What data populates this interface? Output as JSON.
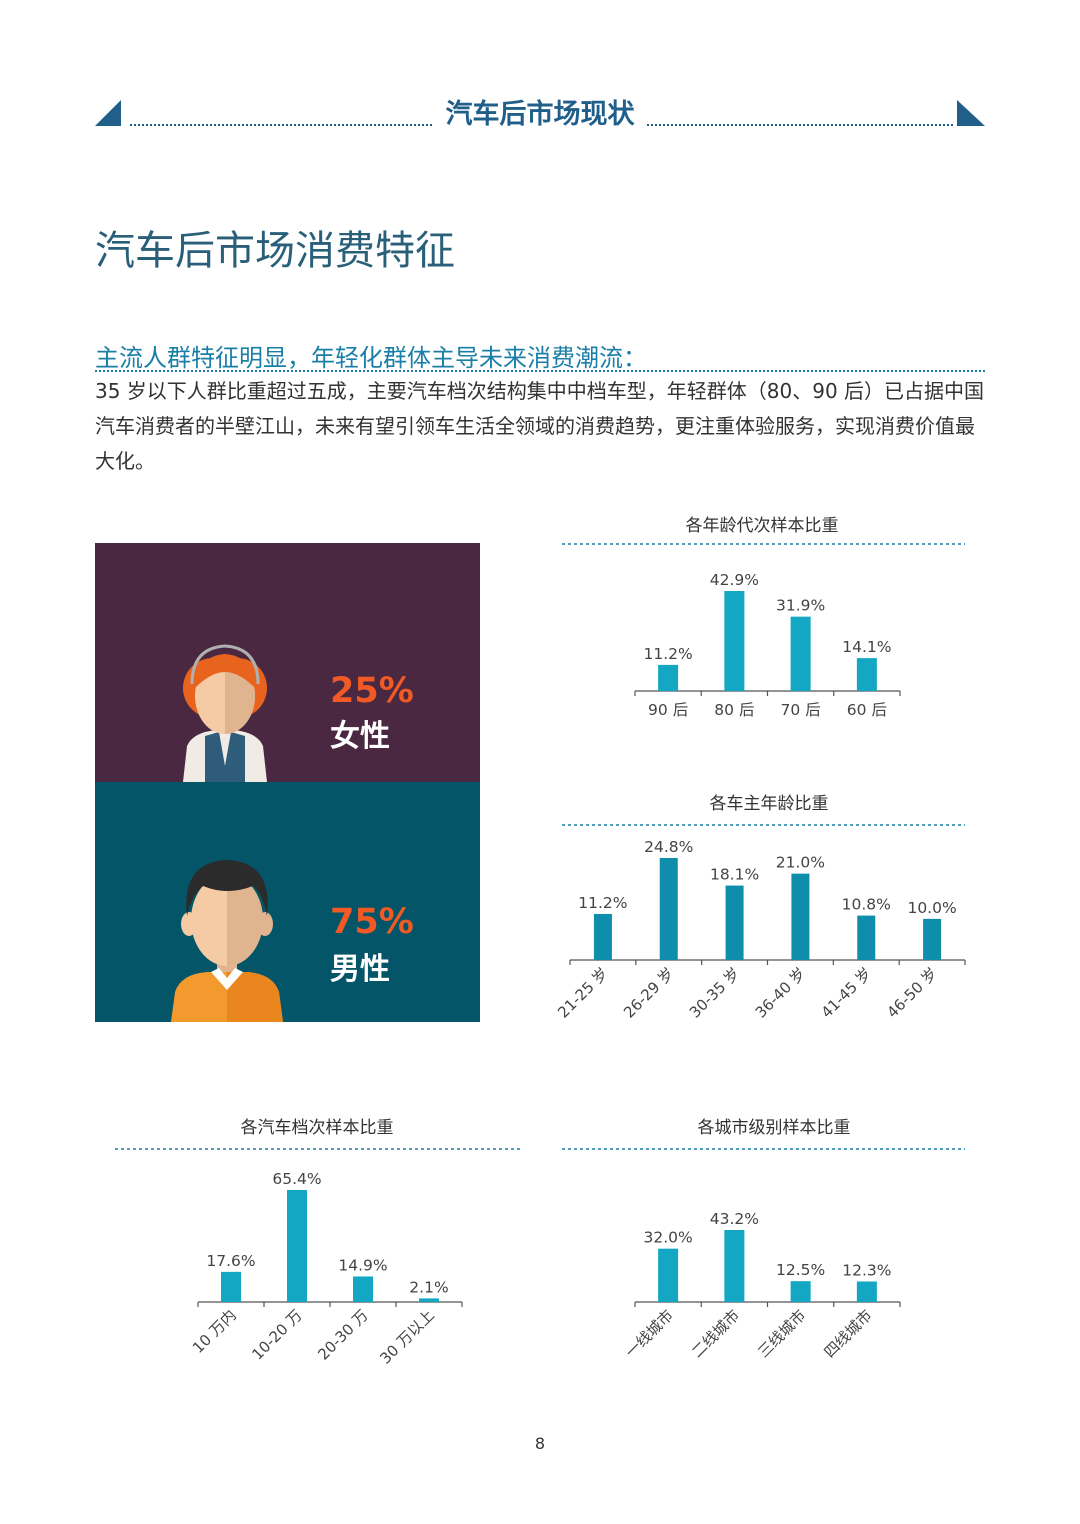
{
  "header": {
    "title": "汽车后市场现状"
  },
  "page_title": "汽车后市场消费特征",
  "subhead": "主流人群特征明显，年轻化群体主导未来消费潮流：",
  "body": "35 岁以下人群比重超过五成，主要汽车档次结构集中中档车型，年轻群体（80、90 后）已占据中国汽车消费者的半壁江山，未来有望引领车生活全领域的消费趋势，更注重体验服务，实现消费价值最大化。",
  "gender": {
    "female": {
      "pct": "25%",
      "label": "女性"
    },
    "male": {
      "pct": "75%",
      "label": "男性"
    }
  },
  "colors": {
    "bar_light": "#13a7c4",
    "bar_dark": "#0f8eab",
    "female_bg": "#4a2841",
    "male_bg": "#045567",
    "accent": "#f15a24"
  },
  "chart_data": [
    {
      "id": "chart-generation",
      "type": "bar",
      "title": "各年龄代次样本比重",
      "categories": [
        "90 后",
        "80 后",
        "70 后",
        "60 后"
      ],
      "values": [
        11.2,
        42.9,
        31.9,
        14.1
      ],
      "labels": [
        "11.2%",
        "42.9%",
        "31.9%",
        "14.1%"
      ]
    },
    {
      "id": "chart-owner-age",
      "type": "bar",
      "title": "各车主年龄比重",
      "categories": [
        "21-25 岁",
        "26-29 岁",
        "30-35 岁",
        "36-40 岁",
        "41-45 岁",
        "46-50 岁"
      ],
      "values": [
        11.2,
        24.8,
        18.1,
        21.0,
        10.8,
        10.0
      ],
      "labels": [
        "11.2%",
        "24.8%",
        "18.1%",
        "21.0%",
        "10.8%",
        "10.0%"
      ]
    },
    {
      "id": "chart-car-grade",
      "type": "bar",
      "title": "各汽车档次样本比重",
      "categories": [
        "10 万内",
        "10-20 万",
        "20-30 万",
        "30 万以上"
      ],
      "values": [
        17.6,
        65.4,
        14.9,
        2.1
      ],
      "labels": [
        "17.6%",
        "65.4%",
        "14.9%",
        "2.1%"
      ]
    },
    {
      "id": "chart-city-tier",
      "type": "bar",
      "title": "各城市级别样本比重",
      "categories": [
        "一线城市",
        "二线城市",
        "三线城市",
        "四线城市"
      ],
      "values": [
        32.0,
        43.2,
        12.5,
        12.3
      ],
      "labels": [
        "32.0%",
        "43.2%",
        "12.5%",
        "12.3%"
      ]
    }
  ],
  "page_number": "8"
}
